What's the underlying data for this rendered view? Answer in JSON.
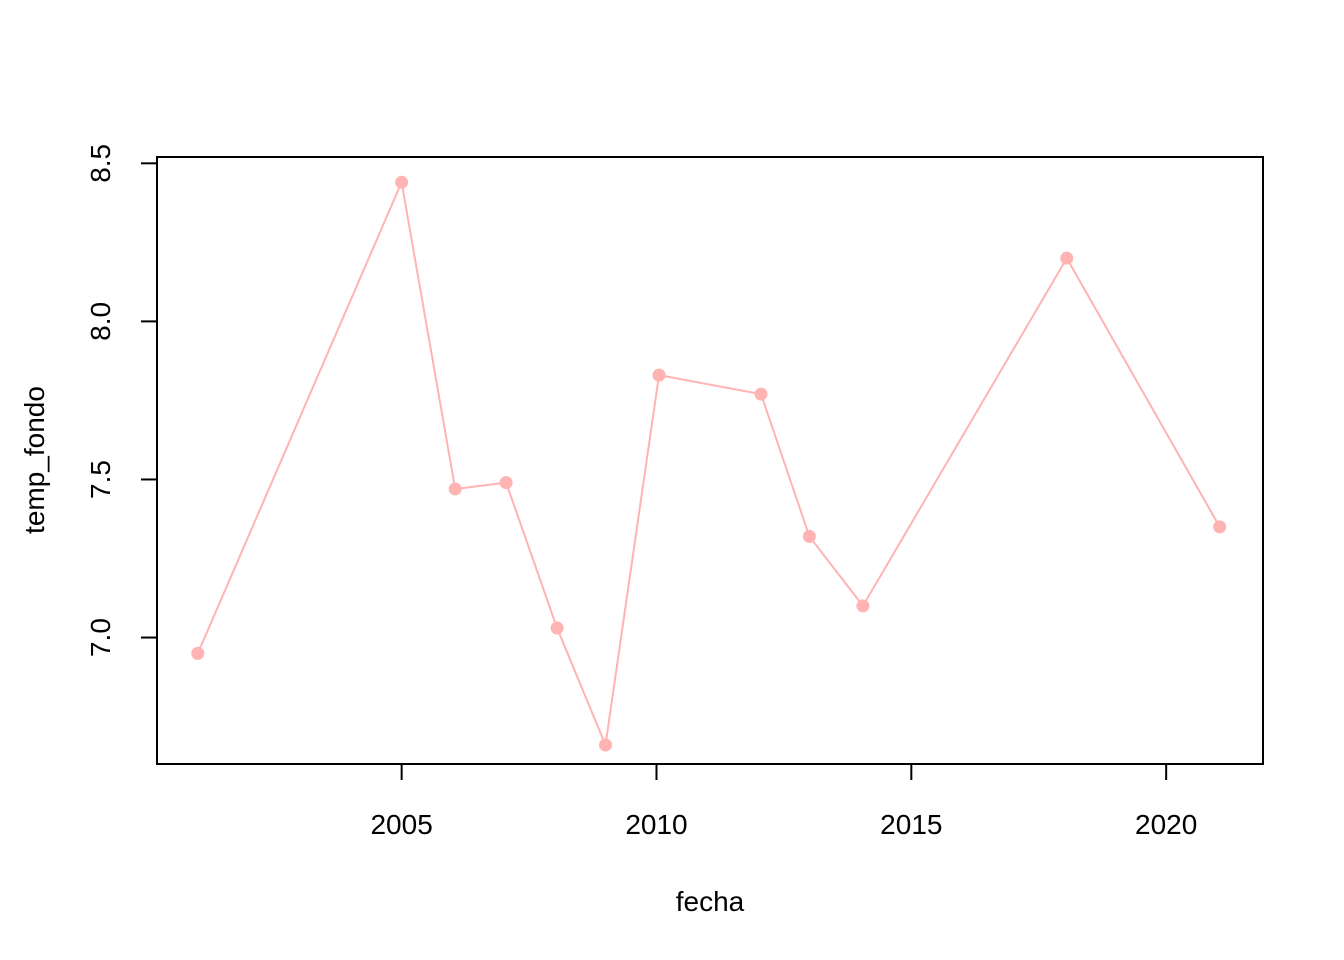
{
  "chart_data": {
    "type": "line",
    "title": "",
    "xlabel": "fecha",
    "ylabel": "temp_fondo",
    "xlim": [
      2000.2,
      2021.9
    ],
    "ylim": [
      6.6,
      8.52
    ],
    "x_ticks": [
      2005,
      2010,
      2015,
      2020
    ],
    "y_ticks": [
      7.0,
      7.5,
      8.0,
      8.5
    ],
    "y_tick_labels": [
      "7.0",
      "7.5",
      "8.0",
      "8.5"
    ],
    "grid": false,
    "legend": "none",
    "series_color": "#ffb3b3",
    "series": [
      {
        "x": [
          2001.0,
          2005.0,
          2006.05,
          2007.05,
          2008.05,
          2009.0,
          2010.05,
          2012.05,
          2013.0,
          2014.05,
          2018.05,
          2021.05
        ],
        "y": [
          6.95,
          8.44,
          7.47,
          7.49,
          7.03,
          6.66,
          7.83,
          7.77,
          7.32,
          7.1,
          8.2,
          7.35
        ]
      }
    ]
  }
}
